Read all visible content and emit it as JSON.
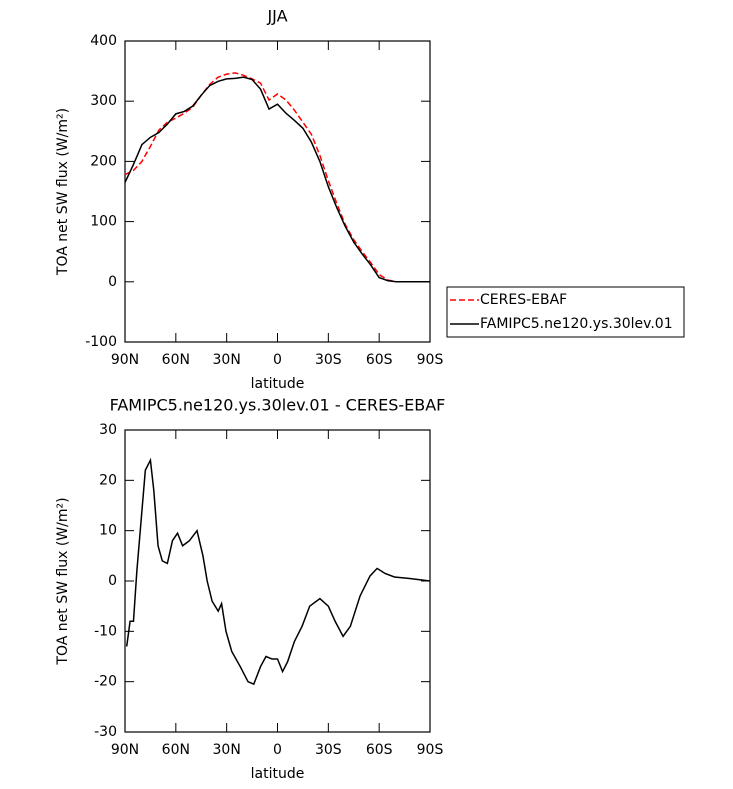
{
  "chart_data": [
    {
      "type": "line",
      "title": "JJA",
      "xlabel": "latitude",
      "ylabel": "TOA net SW flux (W/m²)",
      "x": [
        90,
        85,
        80,
        75,
        70,
        65,
        60,
        55,
        50,
        45,
        40,
        35,
        30,
        25,
        20,
        15,
        10,
        5,
        0,
        -5,
        -10,
        -15,
        -20,
        -25,
        -30,
        -35,
        -40,
        -45,
        -50,
        -55,
        -60,
        -65,
        -70,
        -75,
        -80,
        -85,
        -90
      ],
      "series": [
        {
          "name": "CERES-EBAF",
          "color": "#ff0000",
          "style": "dashed",
          "values": [
            178,
            185,
            200,
            225,
            252,
            265,
            272,
            280,
            290,
            310,
            328,
            340,
            345,
            347,
            343,
            337,
            330,
            302,
            312,
            302,
            285,
            265,
            245,
            210,
            168,
            130,
            95,
            70,
            50,
            32,
            12,
            3,
            0,
            0,
            0,
            0,
            0
          ]
        },
        {
          "name": "FAMIPC5.ne120.ys.30lev.01",
          "color": "#000000",
          "style": "solid",
          "values": [
            165,
            195,
            228,
            240,
            248,
            262,
            279,
            283,
            292,
            310,
            326,
            333,
            337,
            338,
            340,
            336,
            320,
            287,
            295,
            280,
            268,
            255,
            232,
            200,
            158,
            123,
            92,
            66,
            46,
            28,
            7,
            2,
            0,
            0,
            0,
            0,
            0
          ]
        }
      ],
      "xlim": [
        90,
        -90
      ],
      "xticks": [
        {
          "value": 90,
          "label": "90N"
        },
        {
          "value": 60,
          "label": "60N"
        },
        {
          "value": 30,
          "label": "30N"
        },
        0,
        {
          "value": -30,
          "label": "30S"
        },
        {
          "value": -60,
          "label": "60S"
        },
        {
          "value": -90,
          "label": "90S"
        }
      ],
      "ylim": [
        -100,
        400
      ],
      "yticks": [
        -100,
        0,
        100,
        200,
        300,
        400
      ],
      "legend": "right"
    },
    {
      "type": "line",
      "title": "FAMIPC5.ne120.ys.30lev.01 - CERES-EBAF",
      "xlabel": "latitude",
      "ylabel": "TOA net SW flux (W/m²)",
      "x": [
        89,
        87,
        85,
        83,
        80,
        78,
        75,
        73,
        70.5,
        68,
        65,
        62,
        59,
        56,
        52,
        47.5,
        44,
        41.5,
        38.6,
        35,
        33,
        30.4,
        27,
        22,
        17.4,
        14,
        10,
        6.8,
        3.2,
        0,
        -3,
        -6,
        -10,
        -14.5,
        -19,
        -25,
        -30,
        -34,
        -38.7,
        -43,
        -48.7,
        -54.6,
        -58.8,
        -63.5,
        -69,
        -78,
        -90
      ],
      "series": [
        {
          "name": "FAMIPC5.ne120.ys.30lev.01 - CERES-EBAF",
          "color": "#000000",
          "style": "solid",
          "values": [
            -13,
            -8,
            -8,
            2,
            14,
            22,
            24,
            18,
            7,
            4,
            3.5,
            8,
            9.5,
            7,
            8,
            10,
            5,
            0,
            -4,
            -6,
            -4.5,
            -10,
            -14,
            -17,
            -20,
            -20.5,
            -17,
            -15,
            -15.5,
            -15.5,
            -18,
            -16,
            -12,
            -9,
            -5,
            -3.5,
            -5,
            -8,
            -11,
            -9,
            -3,
            1,
            2.5,
            1.5,
            0.8,
            0.5,
            0
          ]
        }
      ],
      "xlim": [
        90,
        -90
      ],
      "xticks": [
        {
          "value": 90,
          "label": "90N"
        },
        {
          "value": 60,
          "label": "60N"
        },
        {
          "value": 30,
          "label": "30N"
        },
        0,
        {
          "value": -30,
          "label": "30S"
        },
        {
          "value": -60,
          "label": "60S"
        },
        {
          "value": -90,
          "label": "90S"
        }
      ],
      "ylim": [
        -30,
        30
      ],
      "yticks": [
        -30,
        -20,
        -10,
        0,
        10,
        20,
        30
      ]
    }
  ]
}
